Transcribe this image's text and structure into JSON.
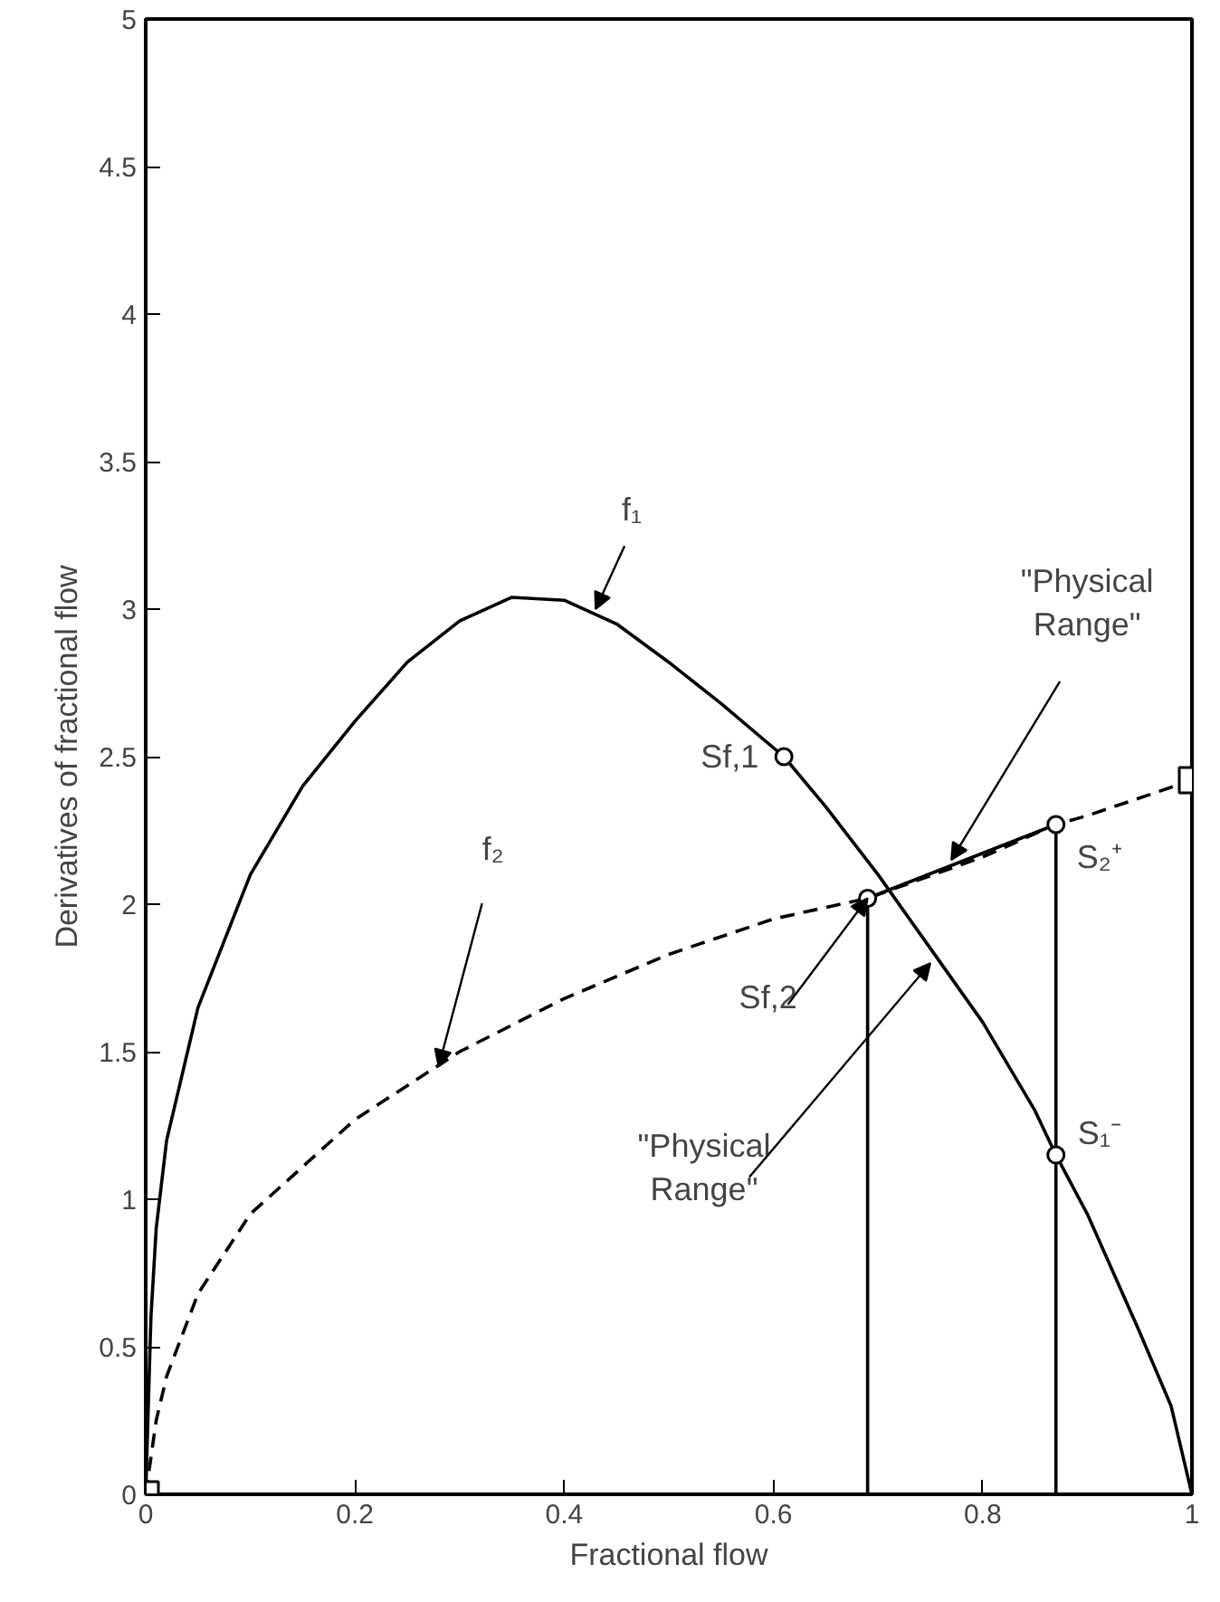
{
  "chart_data": {
    "type": "line",
    "xlabel": "Fractional flow",
    "ylabel": "Derivatives of fractional flow",
    "xlim": [
      0,
      1
    ],
    "ylim": [
      0,
      5
    ],
    "xticks": [
      0,
      0.2,
      0.4,
      0.6,
      0.8,
      1
    ],
    "yticks": [
      0,
      0.5,
      1,
      1.5,
      2,
      2.5,
      3,
      3.5,
      4,
      4.5,
      5
    ],
    "grid": false,
    "series": [
      {
        "color": "#000000",
        "line_style": "solid",
        "x": [
          0,
          0.005,
          0.01,
          0.02,
          0.05,
          0.1,
          0.15,
          0.2,
          0.25,
          0.3,
          0.35,
          0.4,
          0.45,
          0.5,
          0.55,
          0.61
        ],
        "values": [
          0,
          0.6,
          0.9,
          1.2,
          1.65,
          2.1,
          2.4,
          2.62,
          2.82,
          2.96,
          3.04,
          3.03,
          2.95,
          2.82,
          2.68,
          2.5
        ]
      },
      {
        "color": "#000000",
        "line_style": "solid",
        "x": [
          0.61,
          0.65,
          0.7,
          0.75,
          0.8,
          0.85,
          0.87,
          0.9,
          0.95,
          0.98,
          1.0
        ],
        "values": [
          2.5,
          2.33,
          2.1,
          1.85,
          1.6,
          1.3,
          1.15,
          0.95,
          0.55,
          0.3,
          0
        ]
      },
      {
        "color": "#000000",
        "line_style": "dashed",
        "x": [
          0,
          0.01,
          0.02,
          0.05,
          0.1,
          0.2,
          0.3,
          0.4,
          0.5,
          0.6,
          0.69,
          0.8,
          0.87,
          0.9,
          1.0
        ],
        "values": [
          0,
          0.25,
          0.4,
          0.68,
          0.95,
          1.27,
          1.5,
          1.68,
          1.83,
          1.95,
          2.02,
          2.16,
          2.27,
          2.3,
          2.42
        ]
      },
      {
        "color": "#000000",
        "line_style": "solid",
        "x": [
          0.69,
          0.87
        ],
        "values": [
          2.02,
          2.27
        ]
      },
      {
        "color": "#000000",
        "line_style": "solid",
        "x": [
          0.69,
          0.69
        ],
        "values": [
          0,
          2.02
        ]
      },
      {
        "color": "#000000",
        "line_style": "solid",
        "x": [
          0.87,
          0.87
        ],
        "values": [
          0,
          2.27
        ]
      },
      {
        "type": "scatter",
        "marker": "circle",
        "color": "#000000",
        "x": [
          0.61,
          0.69,
          0.87,
          0.87
        ],
        "values": [
          2.5,
          2.02,
          2.27,
          1.15
        ]
      },
      {
        "type": "scatter",
        "marker": "square",
        "color": "#000000",
        "x": [
          0,
          1
        ],
        "values": [
          0,
          2.42
        ]
      }
    ],
    "annotations": [
      {
        "text": "f₁",
        "x": 0.43,
        "y": 3.0
      },
      {
        "text": "f₂",
        "x": 0.28,
        "y": 1.45
      },
      {
        "text": "Sf,1",
        "x": 0.61,
        "y": 2.5
      },
      {
        "text": "Sf,2",
        "x": 0.69,
        "y": 2.02
      },
      {
        "text": "\"Physical\nRange\"",
        "x": 0.77,
        "y": 2.15
      },
      {
        "text": "\"Physical\nRange\"",
        "x": 0.75,
        "y": 1.8
      },
      {
        "text": "S₂⁺",
        "x": 0.87,
        "y": 2.27
      },
      {
        "text": "S₁⁻",
        "x": 0.87,
        "y": 1.15
      }
    ]
  }
}
